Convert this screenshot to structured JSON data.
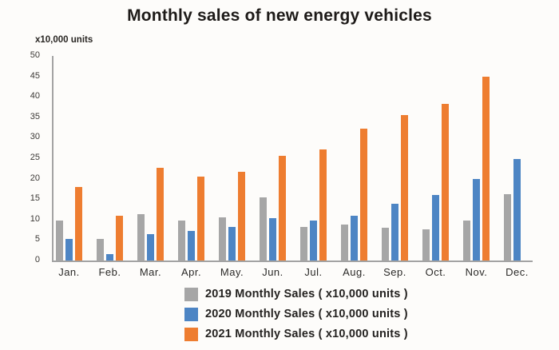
{
  "title": "Monthly sales of new energy vehicles",
  "axis_unit_label": "x10,000 units",
  "colors": {
    "series_2019": "#a6a6a6",
    "series_2020": "#4d85c4",
    "series_2021": "#ee7d30",
    "axis": "#a3a3a3",
    "text": "#1d1a18",
    "background": "#fdfcfa"
  },
  "chart_data": {
    "type": "bar",
    "title": "Monthly sales of new energy vehicles",
    "ylabel": "x10,000 units",
    "xlabel": "",
    "ylim": [
      0,
      50
    ],
    "ytick_step": 5,
    "grid": false,
    "legend_position": "bottom",
    "categories": [
      "Jan.",
      "Feb.",
      "Mar.",
      "Apr.",
      "May.",
      "Jun.",
      "Jul.",
      "Aug.",
      "Sep.",
      "Oct.",
      "Nov.",
      "Dec."
    ],
    "series": [
      {
        "name": "2019 Monthly Sales ( x10,000 units )",
        "color": "#a6a6a6",
        "values": [
          9.7,
          5.3,
          11.4,
          9.8,
          10.6,
          15.4,
          8.2,
          8.7,
          8.0,
          7.6,
          9.7,
          16.3
        ]
      },
      {
        "name": "2020 Monthly Sales ( x10,000 units )",
        "color": "#4d85c4",
        "values": [
          5.2,
          1.5,
          6.5,
          7.2,
          8.2,
          10.4,
          9.8,
          10.9,
          13.9,
          16.1,
          20.0,
          24.8
        ]
      },
      {
        "name": "2021 Monthly Sales ( x10,000 units )",
        "color": "#ee7d30",
        "values": [
          17.9,
          11.0,
          22.6,
          20.6,
          21.7,
          25.6,
          27.2,
          32.2,
          35.5,
          38.3,
          45.0,
          null
        ]
      }
    ]
  }
}
